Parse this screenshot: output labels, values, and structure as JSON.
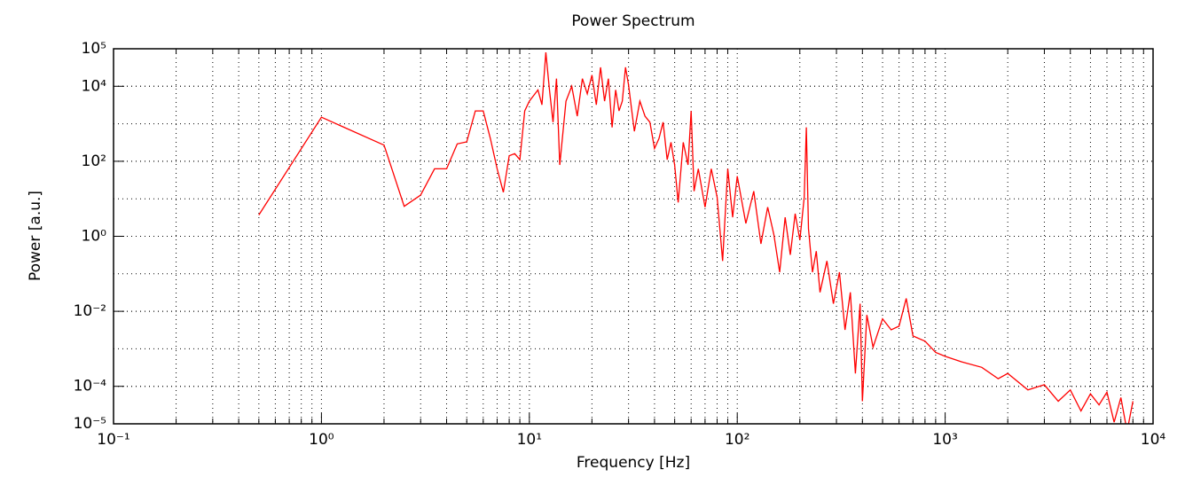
{
  "chart_data": {
    "type": "line",
    "title": "Power Spectrum",
    "xlabel": "Frequency [Hz]",
    "ylabel": "Power [a.u.]",
    "xscale": "log",
    "yscale": "log",
    "grid": true,
    "color": "#ff0000",
    "xlim": [
      0.1,
      10000
    ],
    "xticks": [
      {
        "value": 0.1,
        "label": "10⁻¹"
      },
      {
        "value": 1,
        "label": "10⁰"
      },
      {
        "value": 10,
        "label": "10¹"
      },
      {
        "value": 100,
        "label": "10²"
      },
      {
        "value": 1000,
        "label": "10³"
      },
      {
        "value": 10000,
        "label": "10⁴"
      }
    ],
    "ylim": [
      1e-05,
      100000
    ],
    "yticks": [
      {
        "value": 1e-05,
        "label": "10⁻⁵"
      },
      {
        "value": 0.0001,
        "label": "10⁻⁴"
      },
      {
        "value": 0.01,
        "label": "10⁻²"
      },
      {
        "value": 1,
        "label": "10⁰"
      },
      {
        "value": 100,
        "label": "10²"
      },
      {
        "value": 10000,
        "label": "10⁴"
      },
      {
        "value": 100000,
        "label": "10⁵"
      }
    ],
    "x": [
      0.5,
      1,
      2,
      2.5,
      3,
      3.5,
      4,
      4.5,
      5,
      5.5,
      6,
      6.5,
      7,
      7.5,
      8,
      8.5,
      9,
      9.5,
      10,
      11,
      11.5,
      12,
      12.5,
      13,
      13.5,
      14,
      15,
      16,
      17,
      18,
      19,
      20,
      21,
      22,
      23,
      24,
      25,
      26,
      27,
      28,
      29,
      30,
      32,
      34,
      36,
      38,
      40,
      42,
      44,
      46,
      48,
      50,
      52,
      55,
      58,
      60,
      62,
      65,
      70,
      75,
      80,
      85,
      90,
      95,
      100,
      110,
      120,
      130,
      140,
      150,
      160,
      170,
      180,
      190,
      200,
      210,
      215,
      220,
      230,
      240,
      250,
      270,
      290,
      310,
      330,
      350,
      370,
      390,
      400,
      420,
      450,
      500,
      550,
      600,
      650,
      700,
      800,
      900,
      1000,
      1200,
      1500,
      1800,
      2000,
      2500,
      3000,
      3500,
      4000,
      4500,
      5000,
      5500,
      6000,
      6500,
      7000,
      7500,
      8000
    ],
    "values": [
      3.7,
      1500,
      270,
      6.3,
      12.6,
      63,
      63,
      290,
      330,
      2200,
      2200,
      400,
      63,
      15,
      140,
      160,
      110,
      2200,
      4000,
      8000,
      3200,
      80000,
      8000,
      1100,
      16000,
      80,
      4000,
      10000,
      1600,
      16000,
      6300,
      20000,
      3200,
      32000,
      4000,
      16000,
      800,
      8000,
      2200,
      4000,
      32000,
      11000,
      630,
      4000,
      1600,
      1100,
      220,
      400,
      1100,
      110,
      320,
      80,
      8,
      320,
      80,
      2200,
      16,
      63,
      6,
      63,
      11,
      0.22,
      63,
      3.2,
      40,
      2.2,
      16,
      0.63,
      6,
      1.1,
      0.11,
      3.2,
      0.32,
      4,
      0.8,
      11,
      800,
      1.6,
      0.11,
      0.4,
      0.032,
      0.22,
      0.016,
      0.11,
      0.0032,
      0.032,
      0.00022,
      0.016,
      4e-05,
      0.008,
      0.0011,
      0.0063,
      0.0032,
      0.004,
      0.022,
      0.0022,
      0.0016,
      0.0008,
      0.00063,
      0.00045,
      0.00032,
      0.00016,
      0.00022,
      8e-05,
      0.00011,
      4e-05,
      8e-05,
      2.2e-05,
      6.3e-05,
      3.2e-05,
      7e-05,
      1.1e-05,
      5e-05,
      6.3e-06,
      4e-05
    ]
  }
}
